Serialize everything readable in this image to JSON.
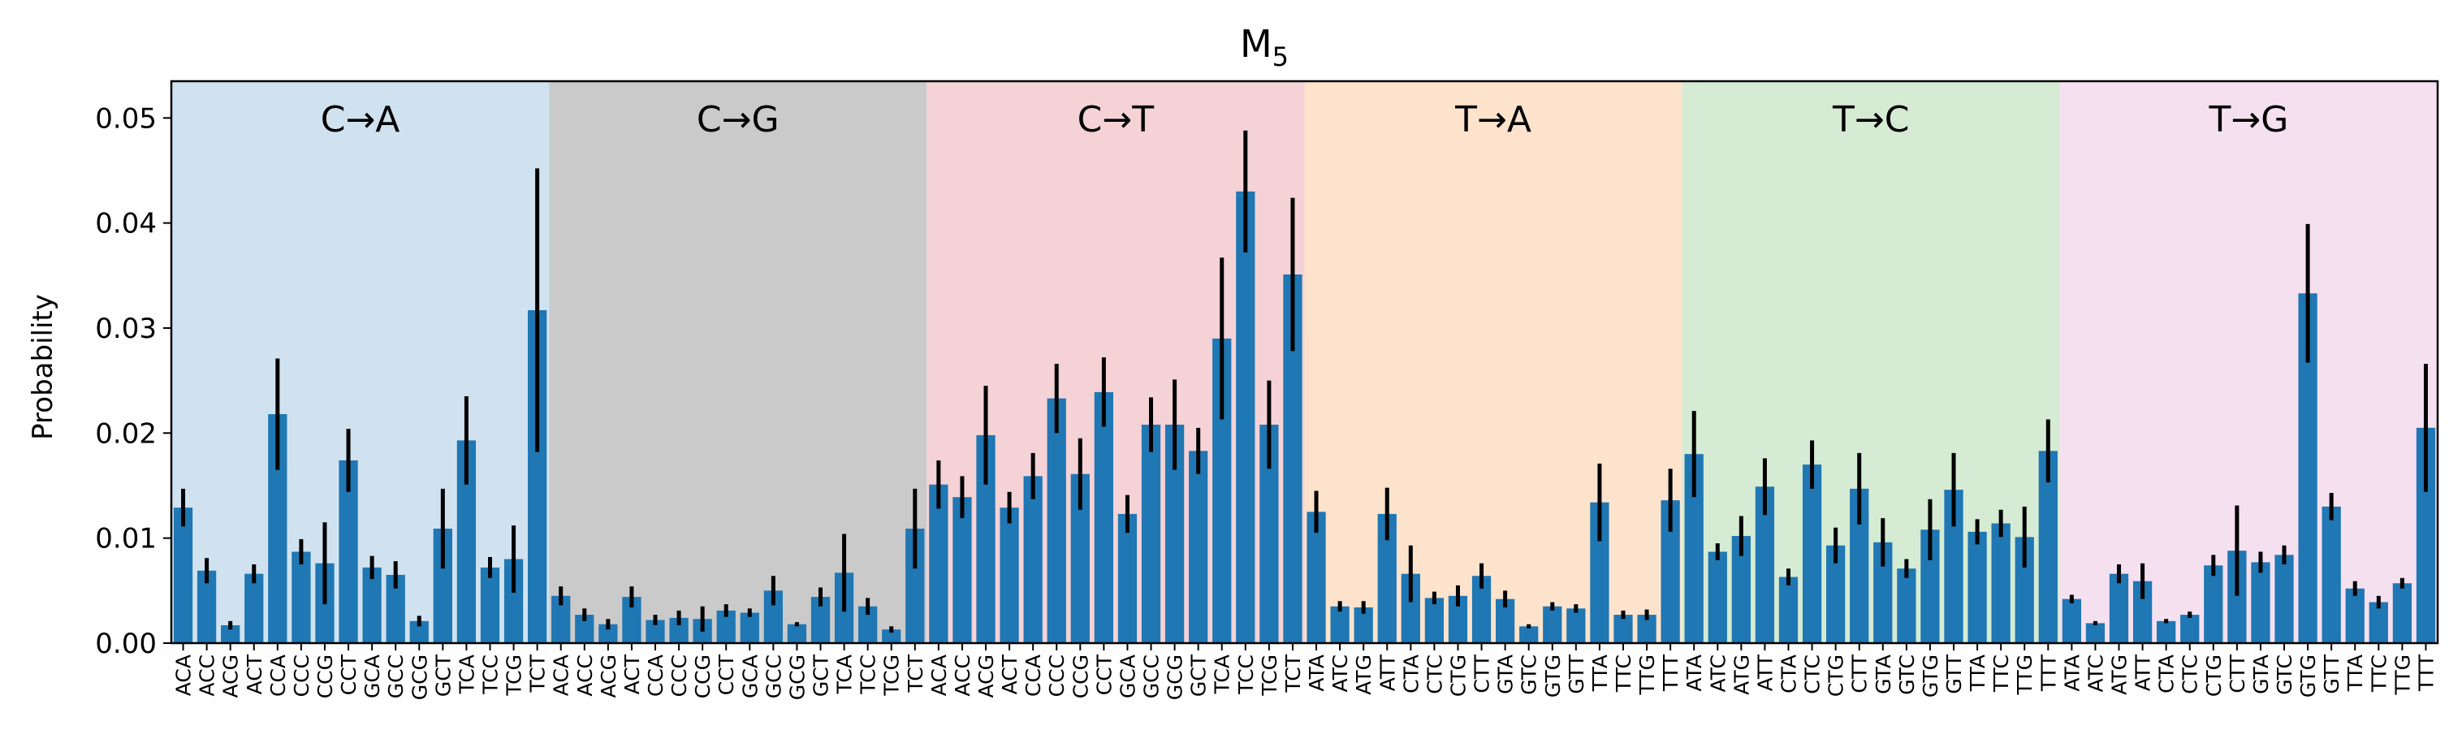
{
  "chart_data": {
    "type": "bar",
    "title_main": "M",
    "title_sub": "5",
    "ylabel": "Probability",
    "xlabel": "",
    "ylim": [
      0,
      0.0535
    ],
    "yticks": [
      0.0,
      0.01,
      0.02,
      0.03,
      0.04,
      0.05
    ],
    "ytick_labels": [
      "0.00",
      "0.01",
      "0.02",
      "0.03",
      "0.04",
      "0.05"
    ],
    "bar_color": "#1f77b4",
    "error_color": "#000000",
    "groups": [
      {
        "label": "C→A",
        "bg_color": "#d0e2f0",
        "categories": [
          "ACA",
          "ACC",
          "ACG",
          "ACT",
          "CCA",
          "CCC",
          "CCG",
          "CCT",
          "GCA",
          "GCC",
          "GCG",
          "GCT",
          "TCA",
          "TCC",
          "TCG",
          "TCT"
        ],
        "values": [
          0.0129,
          0.0069,
          0.0017,
          0.0066,
          0.0218,
          0.0087,
          0.0076,
          0.0174,
          0.0072,
          0.0065,
          0.0021,
          0.0109,
          0.0193,
          0.0072,
          0.008,
          0.0317
        ],
        "errors": [
          0.0018,
          0.0012,
          0.0004,
          0.0009,
          0.0053,
          0.0012,
          0.0039,
          0.003,
          0.0011,
          0.0013,
          0.0005,
          0.0038,
          0.0042,
          0.001,
          0.0032,
          0.0135
        ]
      },
      {
        "label": "C→G",
        "bg_color": "#cacaca",
        "categories": [
          "ACA",
          "ACC",
          "ACG",
          "ACT",
          "CCA",
          "CCC",
          "CCG",
          "CCT",
          "GCA",
          "GCC",
          "GCG",
          "GCT",
          "TCA",
          "TCC",
          "TCG",
          "TCT"
        ],
        "values": [
          0.0045,
          0.0027,
          0.0018,
          0.0044,
          0.0022,
          0.0024,
          0.0023,
          0.0031,
          0.0029,
          0.005,
          0.0018,
          0.0044,
          0.0067,
          0.0035,
          0.0013,
          0.0109
        ],
        "errors": [
          0.0009,
          0.0006,
          0.0005,
          0.001,
          0.0005,
          0.0007,
          0.0012,
          0.0006,
          0.0004,
          0.0014,
          0.0002,
          0.0009,
          0.0037,
          0.0008,
          0.0003,
          0.0038
        ]
      },
      {
        "label": "C→T",
        "bg_color": "#f5d2d6",
        "categories": [
          "ACA",
          "ACC",
          "ACG",
          "ACT",
          "CCA",
          "CCC",
          "CCG",
          "CCT",
          "GCA",
          "GCC",
          "GCG",
          "GCT",
          "TCA",
          "TCC",
          "TCG",
          "TCT"
        ],
        "values": [
          0.0151,
          0.0139,
          0.0198,
          0.0129,
          0.0159,
          0.0233,
          0.0161,
          0.0239,
          0.0123,
          0.0208,
          0.0208,
          0.0183,
          0.029,
          0.043,
          0.0208,
          0.0351
        ],
        "errors": [
          0.0023,
          0.002,
          0.0047,
          0.0015,
          0.0022,
          0.0033,
          0.0034,
          0.0033,
          0.0018,
          0.0026,
          0.0043,
          0.0022,
          0.0077,
          0.0058,
          0.0042,
          0.0073
        ]
      },
      {
        "label": "T→A",
        "bg_color": "#fde3cc",
        "categories": [
          "ATA",
          "ATC",
          "ATG",
          "ATT",
          "CTA",
          "CTC",
          "CTG",
          "CTT",
          "GTA",
          "GTC",
          "GTG",
          "GTT",
          "TTA",
          "TTC",
          "TTG",
          "TTT"
        ],
        "values": [
          0.0125,
          0.0035,
          0.0034,
          0.0123,
          0.0066,
          0.0043,
          0.0045,
          0.0064,
          0.0042,
          0.0016,
          0.0035,
          0.0033,
          0.0134,
          0.0027,
          0.0027,
          0.0136
        ],
        "errors": [
          0.002,
          0.0005,
          0.0006,
          0.0025,
          0.0027,
          0.0006,
          0.001,
          0.0012,
          0.0008,
          0.0002,
          0.0004,
          0.0004,
          0.0037,
          0.0004,
          0.0005,
          0.003
        ]
      },
      {
        "label": "T→C",
        "bg_color": "#d5ebd3",
        "categories": [
          "ATA",
          "ATC",
          "ATG",
          "ATT",
          "CTA",
          "CTC",
          "CTG",
          "CTT",
          "GTA",
          "GTC",
          "GTG",
          "GTT",
          "TTA",
          "TTC",
          "TTG",
          "TTT"
        ],
        "values": [
          0.018,
          0.0087,
          0.0102,
          0.0149,
          0.0063,
          0.017,
          0.0093,
          0.0147,
          0.0096,
          0.0071,
          0.0108,
          0.0146,
          0.0106,
          0.0114,
          0.0101,
          0.0183
        ],
        "errors": [
          0.0041,
          0.0008,
          0.0019,
          0.0027,
          0.0008,
          0.0023,
          0.0017,
          0.0034,
          0.0023,
          0.0009,
          0.0029,
          0.0035,
          0.0012,
          0.0013,
          0.0029,
          0.003
        ]
      },
      {
        "label": "T→G",
        "bg_color": "#f5e0f0",
        "categories": [
          "ATA",
          "ATC",
          "ATG",
          "ATT",
          "CTA",
          "CTC",
          "CTG",
          "CTT",
          "GTA",
          "GTC",
          "GTG",
          "GTT",
          "TTA",
          "TTC",
          "TTG",
          "TTT"
        ],
        "values": [
          0.0042,
          0.0019,
          0.0066,
          0.0059,
          0.0021,
          0.0027,
          0.0074,
          0.0088,
          0.0077,
          0.0084,
          0.0333,
          0.013,
          0.0052,
          0.0039,
          0.0057,
          0.0205
        ],
        "errors": [
          0.0004,
          0.0002,
          0.0009,
          0.0017,
          0.0002,
          0.0003,
          0.001,
          0.0043,
          0.001,
          0.0009,
          0.0066,
          0.0013,
          0.0007,
          0.0006,
          0.0005,
          0.0061
        ]
      }
    ]
  }
}
